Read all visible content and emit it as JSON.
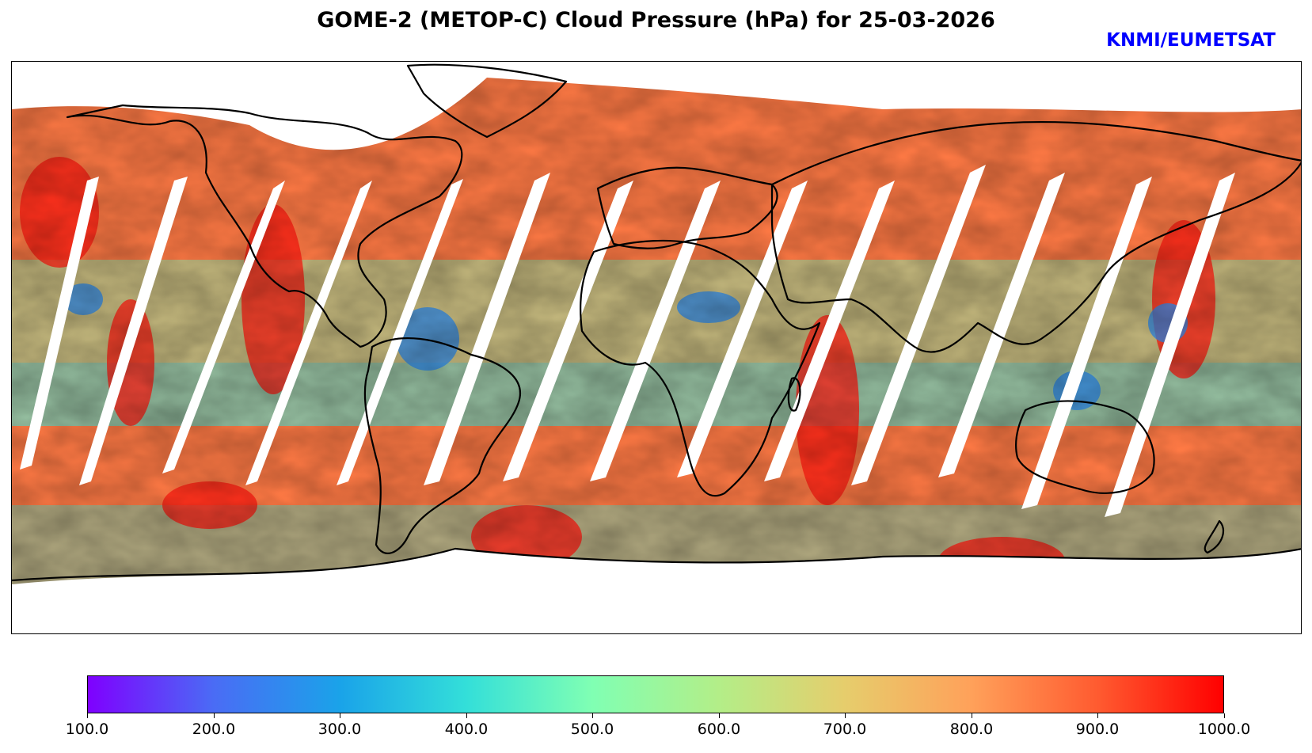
{
  "title": "GOME-2 (METOP-C) Cloud Pressure (hPa) for 25-03-2026",
  "credit": "KNMI/EUMETSAT",
  "colorbar": {
    "min": 100.0,
    "max": 1000.0,
    "tick_labels": [
      "100.0",
      "200.0",
      "300.0",
      "400.0",
      "500.0",
      "600.0",
      "700.0",
      "800.0",
      "900.0",
      "1000.0"
    ],
    "colors": [
      "#7f00ff",
      "#4a6cf5",
      "#1aa3e9",
      "#33dfd9",
      "#80ffb3",
      "#b3ee88",
      "#e6cd6c",
      "#ffa15a",
      "#ff5b30",
      "#ff0000"
    ]
  },
  "map": {
    "projection": "Plate Carree",
    "variable": "Cloud Pressure",
    "units": "hPa"
  }
}
